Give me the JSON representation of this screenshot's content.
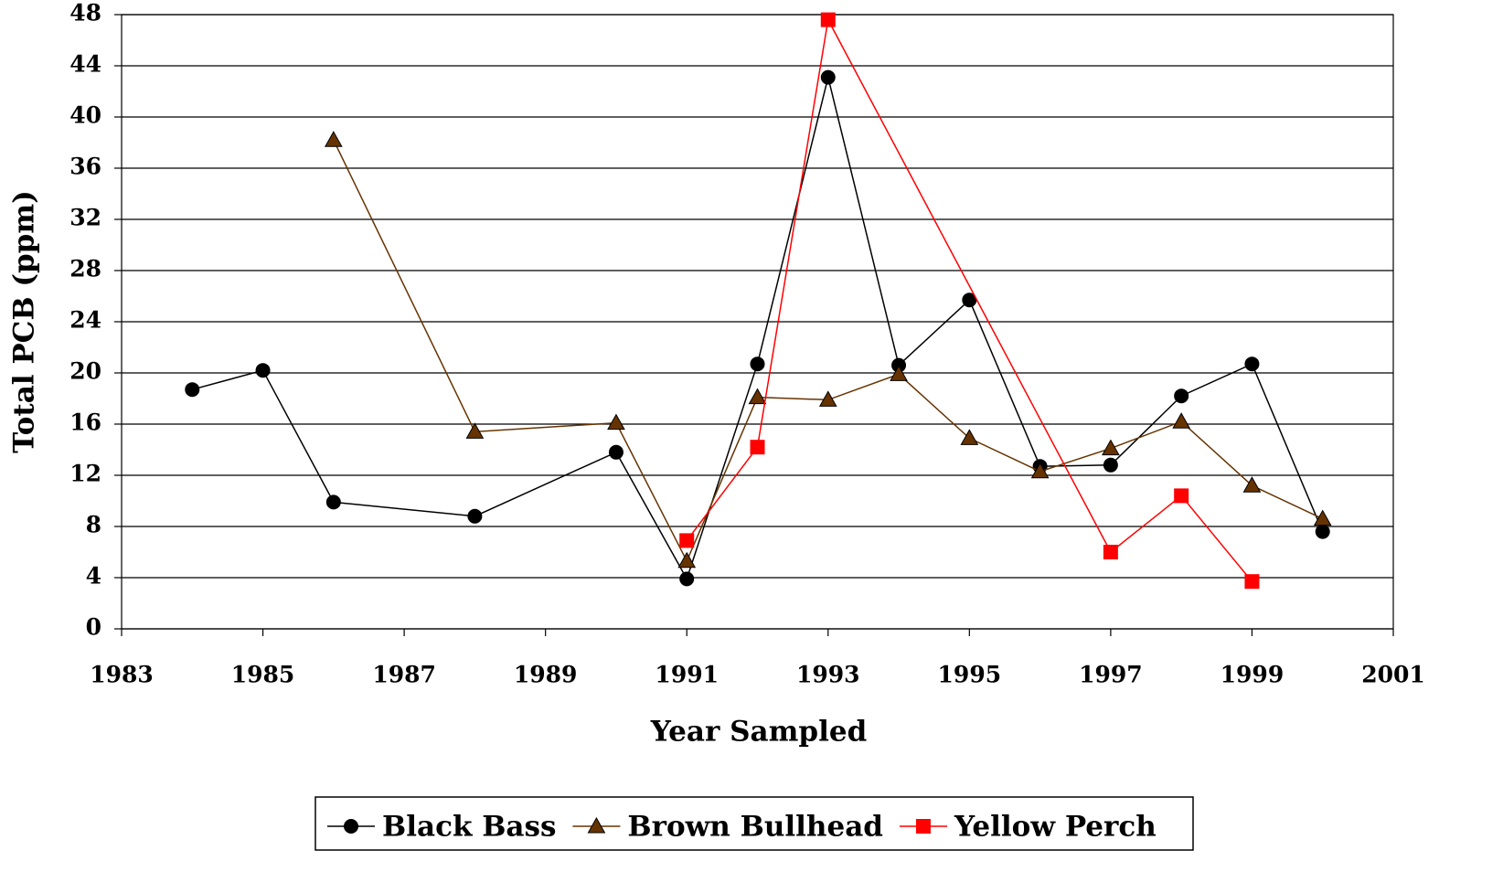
{
  "chart_data": {
    "type": "line",
    "x_label": "Year Sampled",
    "y_label": "Total PCB (ppm)",
    "xlim": [
      1983,
      2001
    ],
    "xticks": [
      1983,
      1985,
      1987,
      1989,
      1991,
      1993,
      1995,
      1997,
      1999,
      2001
    ],
    "ylim": [
      0,
      48
    ],
    "yticks": [
      0,
      4,
      8,
      12,
      16,
      20,
      24,
      28,
      32,
      36,
      40,
      44,
      48
    ],
    "grid": true,
    "legend": "bottom",
    "series": [
      {
        "name": "Black Bass",
        "color": "#000000",
        "marker": "circle",
        "x": [
          1984,
          1985,
          1986,
          1988,
          1990,
          1991,
          1992,
          1993,
          1994,
          1995,
          1996,
          1997,
          1998,
          1999,
          2000
        ],
        "values": [
          18.7,
          20.2,
          9.9,
          8.8,
          13.8,
          3.9,
          20.7,
          43.1,
          20.6,
          25.7,
          12.7,
          12.8,
          18.2,
          20.7,
          7.6
        ]
      },
      {
        "name": "Brown Bullhead",
        "color": "#663300",
        "marker": "triangle",
        "x": [
          1986,
          1988,
          1990,
          1991,
          1992,
          1993,
          1994,
          1995,
          1996,
          1997,
          1998,
          1999,
          2000
        ],
        "values": [
          38.2,
          15.4,
          16.1,
          5.3,
          18.1,
          17.9,
          19.9,
          14.9,
          12.3,
          14.1,
          16.2,
          11.2,
          8.6
        ]
      },
      {
        "name": "Yellow Perch",
        "color": "#ff0000",
        "marker": "square",
        "x": [
          1991,
          1992,
          1993,
          1997,
          1998,
          1999
        ],
        "values": [
          6.9,
          14.2,
          47.6,
          6.0,
          10.4,
          3.7
        ]
      }
    ]
  }
}
